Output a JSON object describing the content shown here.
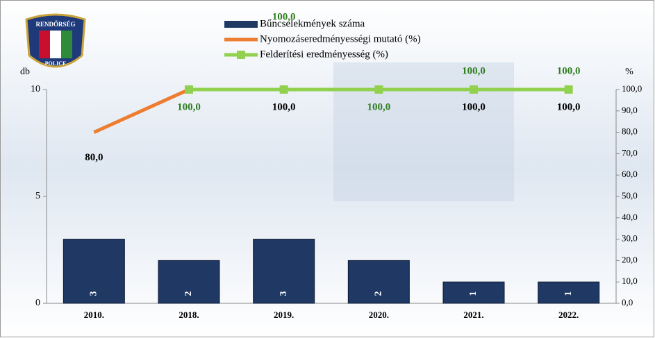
{
  "logo": {
    "top": "RENDŐRSÉG",
    "bottom": "POLICE"
  },
  "chart_data": {
    "type": "bar",
    "categories": [
      "2010.",
      "2018.",
      "2019.",
      "2020.",
      "2021.",
      "2022."
    ],
    "ylabel": "db",
    "y2label": "%",
    "ylim": [
      0,
      10
    ],
    "yticks": [
      0,
      5,
      10
    ],
    "y2lim": [
      0,
      100
    ],
    "y2ticks": [
      {
        "value": 0,
        "label": "0,0"
      },
      {
        "value": 10,
        "label": "10,0"
      },
      {
        "value": 20,
        "label": "20,0"
      },
      {
        "value": 30,
        "label": "30,0"
      },
      {
        "value": 40,
        "label": "40,0"
      },
      {
        "value": 50,
        "label": "50,0"
      },
      {
        "value": 60,
        "label": "60,0"
      },
      {
        "value": 70,
        "label": "70,0"
      },
      {
        "value": 80,
        "label": "80,0"
      },
      {
        "value": 90,
        "label": "90,0"
      },
      {
        "value": 100,
        "label": "100,0"
      }
    ],
    "series": [
      {
        "name": "Bűncselekmények száma",
        "type": "bar",
        "color": "#1f3864",
        "values": [
          3,
          2,
          3,
          2,
          1,
          1
        ]
      },
      {
        "name": "Nyomozáseredményességi mutató (%)",
        "type": "line",
        "axis": "y2",
        "color": "#ed7d31",
        "values": [
          80,
          100,
          100,
          100,
          100,
          100
        ],
        "value_labels": [
          "80,0",
          null,
          "100,0",
          null,
          "100,0",
          "100,0"
        ]
      },
      {
        "name": "Felderítési eredményesség (%)",
        "type": "line",
        "axis": "y2",
        "color": "#92d050",
        "values": [
          null,
          100,
          100,
          100,
          100,
          100
        ],
        "value_labels": [
          null,
          "100,0",
          "100,0",
          "100,0",
          "100,0",
          "100,0"
        ]
      }
    ]
  }
}
